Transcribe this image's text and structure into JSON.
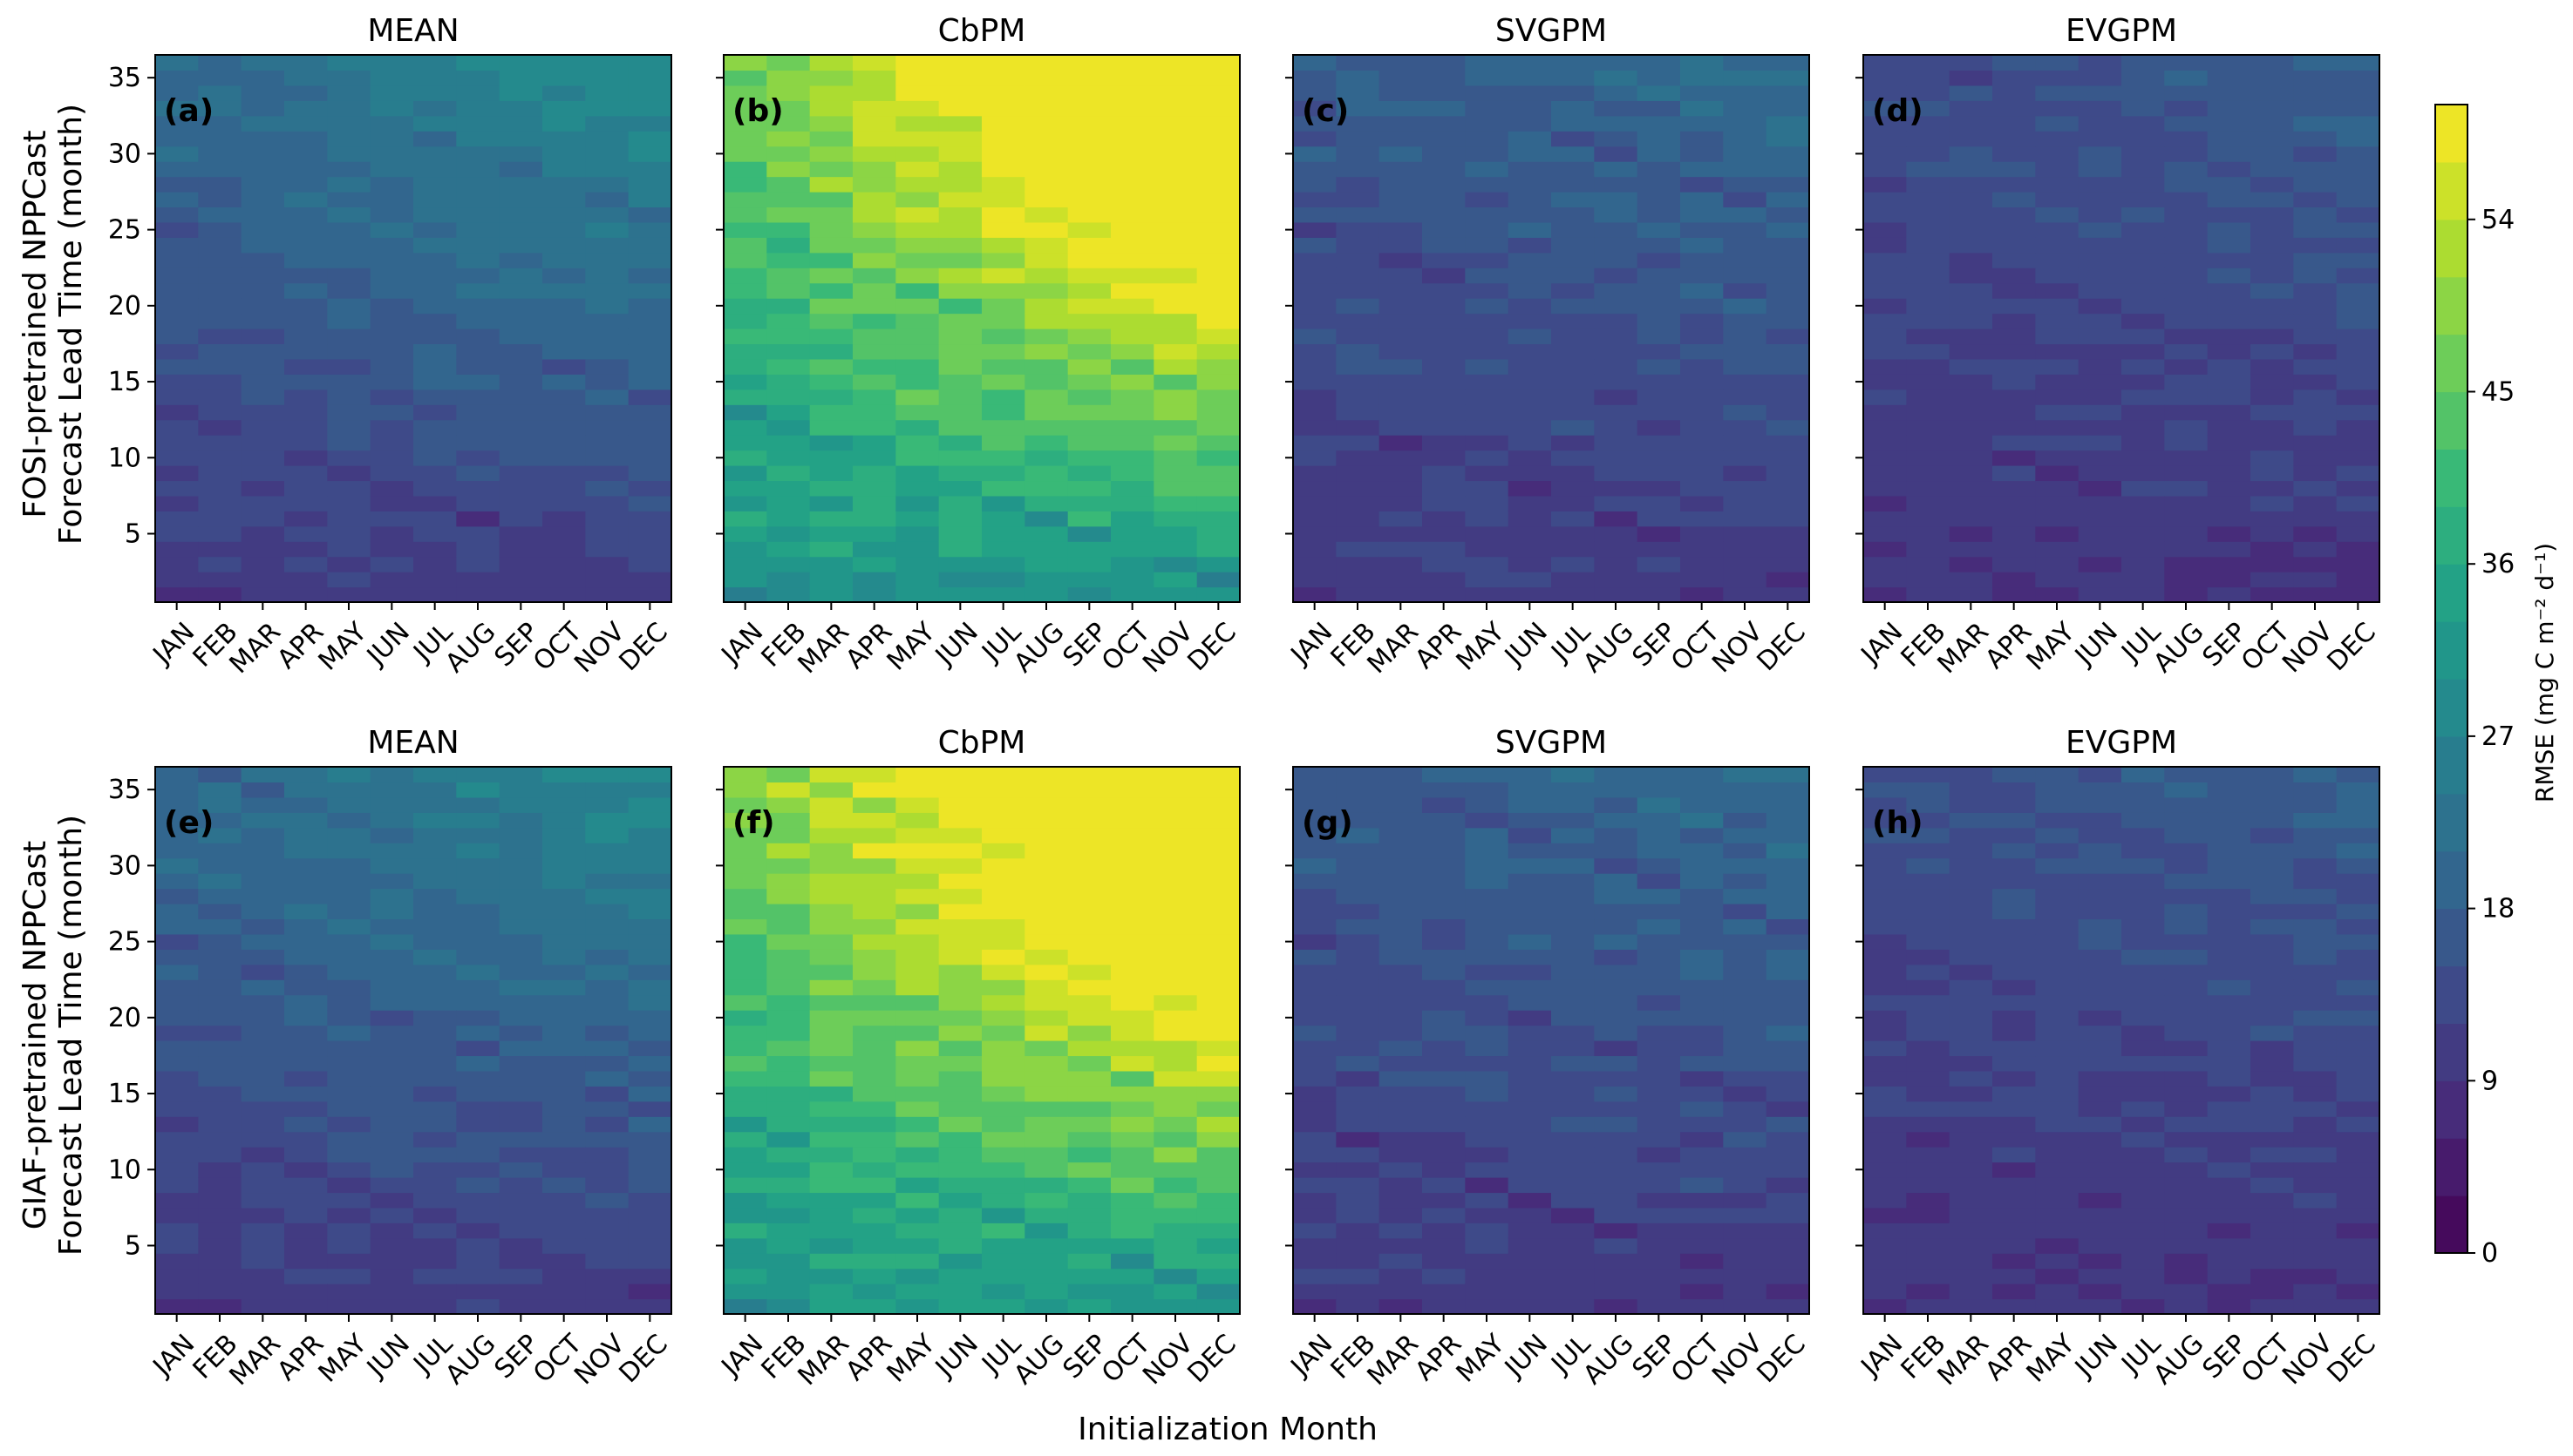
{
  "figure": {
    "xlabel": "Initialization Month",
    "row_ylabels": [
      [
        "FOSI-pretrained NPPCast",
        "Forecast Lead Time (month)"
      ],
      [
        "GIAF-pretrained NPPCast",
        "Forecast Lead Time (month)"
      ]
    ]
  },
  "colorbar": {
    "label": "RMSE (mg C m⁻² d⁻¹)",
    "ticks": [
      0,
      9,
      18,
      27,
      36,
      45,
      54
    ],
    "vmin": 0,
    "vmax": 60,
    "levels": 20,
    "colormap": "viridis"
  },
  "chart_data": [
    {
      "type": "heatmap",
      "title": "MEAN",
      "panel_label": "(a)",
      "row": 0,
      "col": 0,
      "x_categories": [
        "JAN",
        "FEB",
        "MAR",
        "APR",
        "MAY",
        "JUN",
        "JUL",
        "AUG",
        "SEP",
        "OCT",
        "NOV",
        "DEC"
      ],
      "ylim": [
        1,
        36
      ],
      "yticks": [
        5,
        10,
        15,
        20,
        25,
        30,
        35
      ],
      "show_yticklabels": true,
      "model": {
        "base": 10,
        "slope": 0.3,
        "ramp": 0.25,
        "diag": 2.5,
        "noise": 1.6,
        "seed": 11
      }
    },
    {
      "type": "heatmap",
      "title": "CbPM",
      "panel_label": "(b)",
      "row": 0,
      "col": 1,
      "x_categories": [
        "JAN",
        "FEB",
        "MAR",
        "APR",
        "MAY",
        "JUN",
        "JUL",
        "AUG",
        "SEP",
        "OCT",
        "NOV",
        "DEC"
      ],
      "ylim": [
        1,
        36
      ],
      "yticks": [
        5,
        10,
        15,
        20,
        25,
        30,
        35
      ],
      "show_yticklabels": false,
      "model": {
        "base": 30,
        "slope": 0.48,
        "ramp": 0.9,
        "diag": 4,
        "noise": 3,
        "seed": 23
      }
    },
    {
      "type": "heatmap",
      "title": "SVGPM",
      "panel_label": "(c)",
      "row": 0,
      "col": 2,
      "x_categories": [
        "JAN",
        "FEB",
        "MAR",
        "APR",
        "MAY",
        "JUN",
        "JUL",
        "AUG",
        "SEP",
        "OCT",
        "NOV",
        "DEC"
      ],
      "ylim": [
        1,
        36
      ],
      "yticks": [
        5,
        10,
        15,
        20,
        25,
        30,
        35
      ],
      "show_yticklabels": false,
      "model": {
        "base": 10,
        "slope": 0.2,
        "ramp": 0.1,
        "diag": 2.5,
        "noise": 1.8,
        "seed": 37
      }
    },
    {
      "type": "heatmap",
      "title": "EVGPM",
      "panel_label": "(d)",
      "row": 0,
      "col": 3,
      "x_categories": [
        "JAN",
        "FEB",
        "MAR",
        "APR",
        "MAY",
        "JUN",
        "JUL",
        "AUG",
        "SEP",
        "OCT",
        "NOV",
        "DEC"
      ],
      "ylim": [
        1,
        36
      ],
      "yticks": [
        5,
        10,
        15,
        20,
        25,
        30,
        35
      ],
      "show_yticklabels": false,
      "model": {
        "base": 9,
        "slope": 0.15,
        "ramp": 0.1,
        "diag": 2,
        "noise": 1.6,
        "seed": 41
      }
    },
    {
      "type": "heatmap",
      "title": "MEAN",
      "panel_label": "(e)",
      "row": 1,
      "col": 0,
      "x_categories": [
        "JAN",
        "FEB",
        "MAR",
        "APR",
        "MAY",
        "JUN",
        "JUL",
        "AUG",
        "SEP",
        "OCT",
        "NOV",
        "DEC"
      ],
      "ylim": [
        1,
        36
      ],
      "yticks": [
        5,
        10,
        15,
        20,
        25,
        30,
        35
      ],
      "show_yticklabels": true,
      "model": {
        "base": 10,
        "slope": 0.3,
        "ramp": 0.2,
        "diag": 2.5,
        "noise": 1.6,
        "seed": 53
      }
    },
    {
      "type": "heatmap",
      "title": "CbPM",
      "panel_label": "(f)",
      "row": 1,
      "col": 1,
      "x_categories": [
        "JAN",
        "FEB",
        "MAR",
        "APR",
        "MAY",
        "JUN",
        "JUL",
        "AUG",
        "SEP",
        "OCT",
        "NOV",
        "DEC"
      ],
      "ylim": [
        1,
        36
      ],
      "yticks": [
        5,
        10,
        15,
        20,
        25,
        30,
        35
      ],
      "show_yticklabels": false,
      "model": {
        "base": 31,
        "slope": 0.5,
        "ramp": 0.9,
        "diag": 4,
        "noise": 3,
        "seed": 67
      }
    },
    {
      "type": "heatmap",
      "title": "SVGPM",
      "panel_label": "(g)",
      "row": 1,
      "col": 2,
      "x_categories": [
        "JAN",
        "FEB",
        "MAR",
        "APR",
        "MAY",
        "JUN",
        "JUL",
        "AUG",
        "SEP",
        "OCT",
        "NOV",
        "DEC"
      ],
      "ylim": [
        1,
        36
      ],
      "yticks": [
        5,
        10,
        15,
        20,
        25,
        30,
        35
      ],
      "show_yticklabels": false,
      "model": {
        "base": 10,
        "slope": 0.2,
        "ramp": 0.1,
        "diag": 2.5,
        "noise": 1.8,
        "seed": 79
      }
    },
    {
      "type": "heatmap",
      "title": "EVGPM",
      "panel_label": "(h)",
      "row": 1,
      "col": 3,
      "x_categories": [
        "JAN",
        "FEB",
        "MAR",
        "APR",
        "MAY",
        "JUN",
        "JUL",
        "AUG",
        "SEP",
        "OCT",
        "NOV",
        "DEC"
      ],
      "ylim": [
        1,
        36
      ],
      "yticks": [
        5,
        10,
        15,
        20,
        25,
        30,
        35
      ],
      "show_yticklabels": false,
      "model": {
        "base": 9,
        "slope": 0.15,
        "ramp": 0.1,
        "diag": 2,
        "noise": 1.6,
        "seed": 83
      }
    }
  ]
}
